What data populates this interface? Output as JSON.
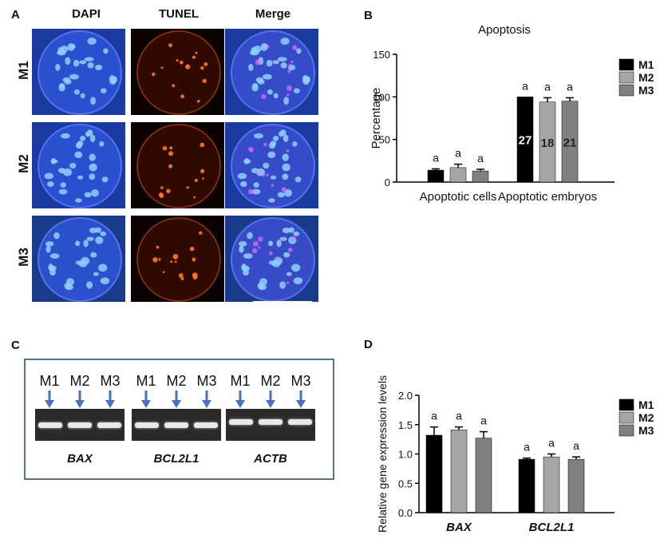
{
  "panel_a": {
    "label": "A",
    "columns": [
      "DAPI",
      "TUNEL",
      "Merge"
    ],
    "rows": [
      "M1",
      "M2",
      "M3"
    ]
  },
  "panel_c": {
    "label": "C",
    "lanes": [
      "M1",
      "M2",
      "M3"
    ],
    "genes": [
      "BAX",
      "BCL2L1",
      "ACTB"
    ],
    "arrow_color": "#4a72b8"
  },
  "chart_data": [
    {
      "panel_label": "B",
      "type": "bar",
      "title": "Apoptosis",
      "ylabel": "Percentage",
      "xlabel": "",
      "ylim": [
        0,
        150
      ],
      "yticks": [
        0,
        50,
        100,
        150
      ],
      "categories": [
        "Apoptotic cells",
        "Apoptotic embryos"
      ],
      "series": [
        {
          "name": "M1",
          "color": "#000000",
          "values": [
            14,
            100
          ],
          "errors": [
            1.5,
            0
          ],
          "letters": [
            "a",
            "a"
          ],
          "bar_labels": [
            "",
            "27"
          ]
        },
        {
          "name": "M2",
          "color": "#a6a6a6",
          "values": [
            17,
            94
          ],
          "errors": [
            4,
            5
          ],
          "letters": [
            "a",
            "a"
          ],
          "bar_labels": [
            "",
            "18"
          ]
        },
        {
          "name": "M3",
          "color": "#808080",
          "values": [
            13,
            95
          ],
          "errors": [
            2,
            4
          ],
          "letters": [
            "a",
            "a"
          ],
          "bar_labels": [
            "",
            "21"
          ]
        }
      ],
      "legend_position": "right"
    },
    {
      "panel_label": "D",
      "type": "bar",
      "title": "",
      "ylabel": "Relative gene expression levels",
      "xlabel": "",
      "ylim": [
        0,
        2.0
      ],
      "yticks": [
        "0.0",
        "0.5",
        "1.0",
        "1.5",
        "2.0"
      ],
      "categories": [
        "BAX",
        "BCL2L1"
      ],
      "series": [
        {
          "name": "M1",
          "color": "#000000",
          "values": [
            1.32,
            0.91
          ],
          "errors": [
            0.14,
            0.02
          ],
          "letters": [
            "a",
            "a"
          ]
        },
        {
          "name": "M2",
          "color": "#a6a6a6",
          "values": [
            1.41,
            0.95
          ],
          "errors": [
            0.05,
            0.05
          ],
          "letters": [
            "a",
            "a"
          ]
        },
        {
          "name": "M3",
          "color": "#808080",
          "values": [
            1.27,
            0.91
          ],
          "errors": [
            0.11,
            0.04
          ],
          "letters": [
            "a",
            "a"
          ]
        }
      ],
      "legend_position": "right"
    }
  ]
}
